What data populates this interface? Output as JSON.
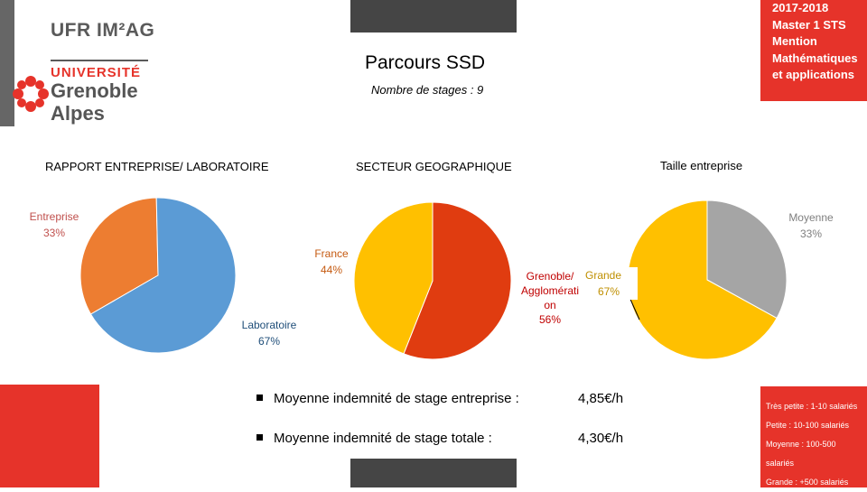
{
  "header": {
    "title": "Parcours SSD",
    "subtitle": "Nombre de stages : 9",
    "year_lines": [
      "2017-2018",
      "Master 1 STS",
      "Mention",
      "Mathématiques",
      "et applications"
    ]
  },
  "logo": {
    "ufr": "UFR IM²AG",
    "university": "UNIVERSITÉ",
    "city1": "Grenoble",
    "city2": "Alpes"
  },
  "chart_data": [
    {
      "type": "pie",
      "title": "RAPPORT ENTREPRISE/ LABORATOIRE",
      "slices": [
        {
          "label": "Laboratoire",
          "value": 67,
          "display": "67%",
          "color": "#5b9bd5"
        },
        {
          "label": "Entreprise",
          "value": 33,
          "display": "33%",
          "color": "#ed7d31"
        }
      ]
    },
    {
      "type": "pie",
      "title": "SECTEUR GEOGRAPHIQUE",
      "slices": [
        {
          "label_lines": [
            "Grenoble/",
            "Agglomérati",
            "on"
          ],
          "value": 56,
          "display": "56%",
          "color": "#e03c10"
        },
        {
          "label_lines": [
            "France"
          ],
          "value": 44,
          "display": "44%",
          "color": "#ffc000"
        }
      ]
    },
    {
      "type": "pie",
      "title": "Taille entreprise",
      "slices": [
        {
          "label": "Moyenne",
          "value": 33,
          "display": "33%",
          "color": "#a5a5a5"
        },
        {
          "label": "Grande",
          "value": 67,
          "display": "67%",
          "color": "#ffc000"
        }
      ]
    }
  ],
  "stats": [
    {
      "label": "Moyenne indemnité de stage entreprise :",
      "value": "4,85€/h"
    },
    {
      "label": "Moyenne indemnité de stage totale :",
      "value": "4,30€/h"
    }
  ],
  "size_legend": [
    "Très petite : 1-10 salariés",
    "Petite : 10-100 salariés",
    "Moyenne : 100-500",
    "salariés",
    "Grande : +500 salariés"
  ]
}
